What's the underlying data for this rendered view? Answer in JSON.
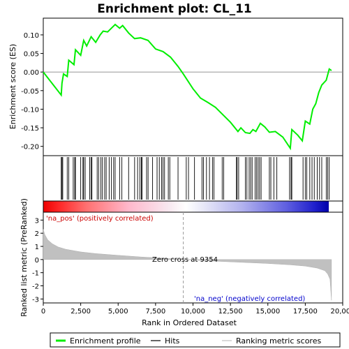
{
  "chart_data": {
    "title": "Enrichment plot: CL_11",
    "panels": [
      {
        "type": "line",
        "name": "enrichment",
        "ylabel": "Enrichment score (ES)",
        "xlim": [
          0,
          20000
        ],
        "ylim": [
          -0.225,
          0.145
        ],
        "yticks": [
          0.1,
          0.05,
          0.0,
          -0.05,
          -0.1,
          -0.15,
          -0.2
        ],
        "ytick_labels": [
          "0.10",
          "0.05",
          "0.00",
          "-0.05",
          "-0.10",
          "-0.15",
          "-0.20"
        ],
        "series_color": "#00ee00",
        "points": [
          [
            0,
            0.0
          ],
          [
            1200,
            -0.062
          ],
          [
            1250,
            -0.03
          ],
          [
            1350,
            -0.005
          ],
          [
            1600,
            -0.012
          ],
          [
            1700,
            0.032
          ],
          [
            2050,
            0.02
          ],
          [
            2150,
            0.06
          ],
          [
            2500,
            0.045
          ],
          [
            2700,
            0.085
          ],
          [
            2900,
            0.07
          ],
          [
            3200,
            0.095
          ],
          [
            3500,
            0.08
          ],
          [
            3800,
            0.1
          ],
          [
            4000,
            0.11
          ],
          [
            4300,
            0.108
          ],
          [
            4600,
            0.12
          ],
          [
            4800,
            0.128
          ],
          [
            5100,
            0.118
          ],
          [
            5300,
            0.125
          ],
          [
            5700,
            0.105
          ],
          [
            6100,
            0.09
          ],
          [
            6500,
            0.092
          ],
          [
            7000,
            0.085
          ],
          [
            7500,
            0.062
          ],
          [
            8000,
            0.055
          ],
          [
            8500,
            0.04
          ],
          [
            9000,
            0.015
          ],
          [
            9354,
            -0.005
          ],
          [
            10000,
            -0.045
          ],
          [
            10500,
            -0.07
          ],
          [
            11000,
            -0.082
          ],
          [
            11500,
            -0.095
          ],
          [
            12000,
            -0.115
          ],
          [
            12500,
            -0.135
          ],
          [
            13000,
            -0.16
          ],
          [
            13200,
            -0.15
          ],
          [
            13500,
            -0.163
          ],
          [
            13800,
            -0.165
          ],
          [
            14000,
            -0.155
          ],
          [
            14200,
            -0.16
          ],
          [
            14500,
            -0.138
          ],
          [
            14800,
            -0.148
          ],
          [
            15100,
            -0.162
          ],
          [
            15500,
            -0.16
          ],
          [
            16000,
            -0.175
          ],
          [
            16500,
            -0.205
          ],
          [
            16600,
            -0.155
          ],
          [
            17000,
            -0.17
          ],
          [
            17300,
            -0.185
          ],
          [
            17500,
            -0.132
          ],
          [
            17800,
            -0.14
          ],
          [
            18000,
            -0.1
          ],
          [
            18200,
            -0.085
          ],
          [
            18400,
            -0.055
          ],
          [
            18600,
            -0.035
          ],
          [
            18900,
            -0.022
          ],
          [
            19100,
            0.008
          ],
          [
            19250,
            0.004
          ]
        ]
      },
      {
        "type": "hits",
        "name": "hits",
        "hit_color": "#000000",
        "positions": [
          1200,
          1250,
          1300,
          1600,
          1700,
          2000,
          2100,
          2150,
          2500,
          2650,
          2700,
          2800,
          3100,
          3200,
          3250,
          3600,
          3700,
          3850,
          3950,
          4100,
          4200,
          4400,
          4550,
          4700,
          4800,
          5100,
          5250,
          5700,
          6100,
          6300,
          6450,
          6550,
          6600,
          6900,
          7000,
          7300,
          7600,
          7750,
          7900,
          8000,
          8100,
          8350,
          8450,
          9000,
          9550,
          9700,
          10100,
          10600,
          10700,
          10900,
          11100,
          11300,
          11400,
          11950,
          12050,
          12900,
          12950,
          13050,
          13500,
          13600,
          13750,
          13850,
          13950,
          14150,
          14250,
          14350,
          14450,
          14550,
          15100,
          15200,
          15400,
          15600,
          16450,
          16550,
          16600,
          17350,
          17500,
          17600,
          17800,
          17950,
          18100,
          18300,
          18450,
          18600,
          18900,
          19000,
          19100
        ]
      },
      {
        "type": "heatmap",
        "name": "rank-heat",
        "colors": [
          "#ee0000",
          "#ffffff",
          "#0000ee"
        ],
        "legend_pos": "'na_pos' (positively correlated)"
      },
      {
        "type": "area",
        "name": "ranked-metric",
        "ylabel": "Ranked list metric (PreRanked)",
        "xlabel": "Rank in Ordered Dataset",
        "xlim": [
          0,
          20000
        ],
        "ylim": [
          -3.3,
          3.6
        ],
        "yticks": [
          3,
          2,
          1,
          0,
          -1,
          -2,
          -3
        ],
        "ytick_labels": [
          "3",
          "2",
          "1",
          "0",
          "-1",
          "-2",
          "-3"
        ],
        "xticks": [
          0,
          2500,
          5000,
          7500,
          10000,
          12500,
          15000,
          17500,
          20000
        ],
        "xtick_labels": [
          "0",
          "2,500",
          "5,000",
          "7,500",
          "10,000",
          "12,500",
          "15,000",
          "17,500",
          "20,000"
        ],
        "fill_color": "#c0c0c0",
        "points": [
          [
            0,
            2.3
          ],
          [
            100,
            1.9
          ],
          [
            300,
            1.5
          ],
          [
            600,
            1.2
          ],
          [
            1000,
            0.95
          ],
          [
            1500,
            0.78
          ],
          [
            2500,
            0.58
          ],
          [
            3500,
            0.45
          ],
          [
            5000,
            0.32
          ],
          [
            6500,
            0.2
          ],
          [
            8000,
            0.1
          ],
          [
            9354,
            0.0
          ],
          [
            11000,
            -0.1
          ],
          [
            13000,
            -0.2
          ],
          [
            15000,
            -0.3
          ],
          [
            16500,
            -0.4
          ],
          [
            17500,
            -0.5
          ],
          [
            18300,
            -0.65
          ],
          [
            18800,
            -0.85
          ],
          [
            19000,
            -1.1
          ],
          [
            19150,
            -1.5
          ],
          [
            19250,
            -3.1
          ]
        ],
        "zero_cross_label": "Zero cross at 9354",
        "zero_cross_x": 9354,
        "neg_label": "'na_neg' (negatively correlated)"
      }
    ],
    "legend": {
      "items": [
        {
          "label": "Enrichment profile",
          "color": "#00ee00",
          "style": "line-thick"
        },
        {
          "label": "Hits",
          "color": "#000000",
          "style": "line"
        },
        {
          "label": "Ranking metric scores",
          "color": "#c0c0c0",
          "style": "line"
        }
      ]
    }
  }
}
